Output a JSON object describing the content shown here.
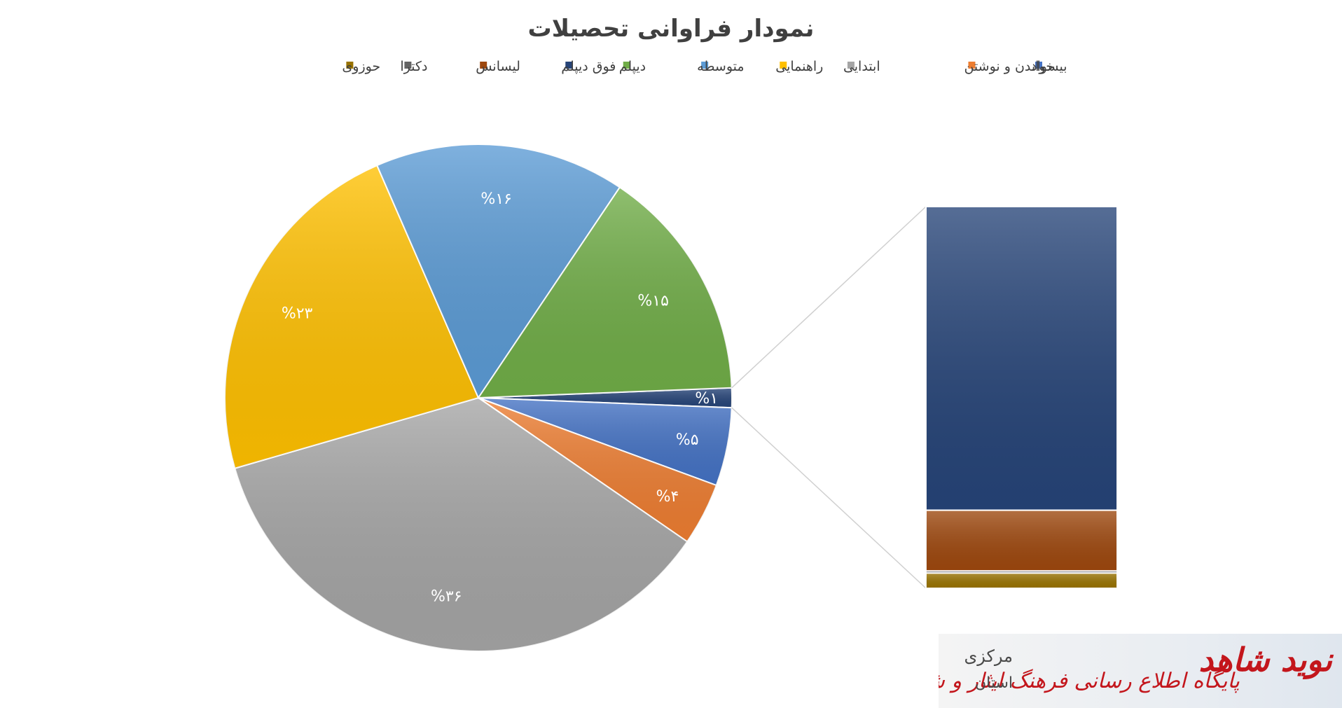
{
  "chart_data": {
    "type": "pie",
    "title": "نمودار فراوانی تحصیلات",
    "legend_position": "top",
    "categories": [
      "بیسواد",
      "خواندن و نوشتن",
      "ابتدایی",
      "راهنمایی",
      "متوسطه",
      "دیپلم",
      "فوق دیپلم",
      "لیسانس",
      "دکترا",
      "حوزوی"
    ],
    "values": [
      5,
      4,
      36,
      23,
      16,
      15,
      1,
      0.2,
      0.005,
      0.05
    ],
    "labels": [
      "%۵",
      "%۴",
      "%۳۶",
      "%۲۳",
      "%۱۶",
      "%۱۵",
      "%۱",
      "",
      "",
      ""
    ],
    "colors": [
      "#4472c4",
      "#ed7d31",
      "#a5a5a5",
      "#ffc000",
      "#5b9bd5",
      "#70ad47",
      "#264478",
      "#9e480e",
      "#636363",
      "#997300"
    ],
    "breakout": {
      "type": "bar-of-pie",
      "slice_index": 6,
      "parts": [
        "فوق دیپلم",
        "لیسانس",
        "دکترا",
        "حوزوی"
      ]
    }
  },
  "watermark": {
    "brand": "نوید شاهد",
    "tagline": "پایگاه اطلاع رسانی فرهنگ ایثار و شهادت",
    "region": "مرکزی",
    "province": "استان"
  }
}
